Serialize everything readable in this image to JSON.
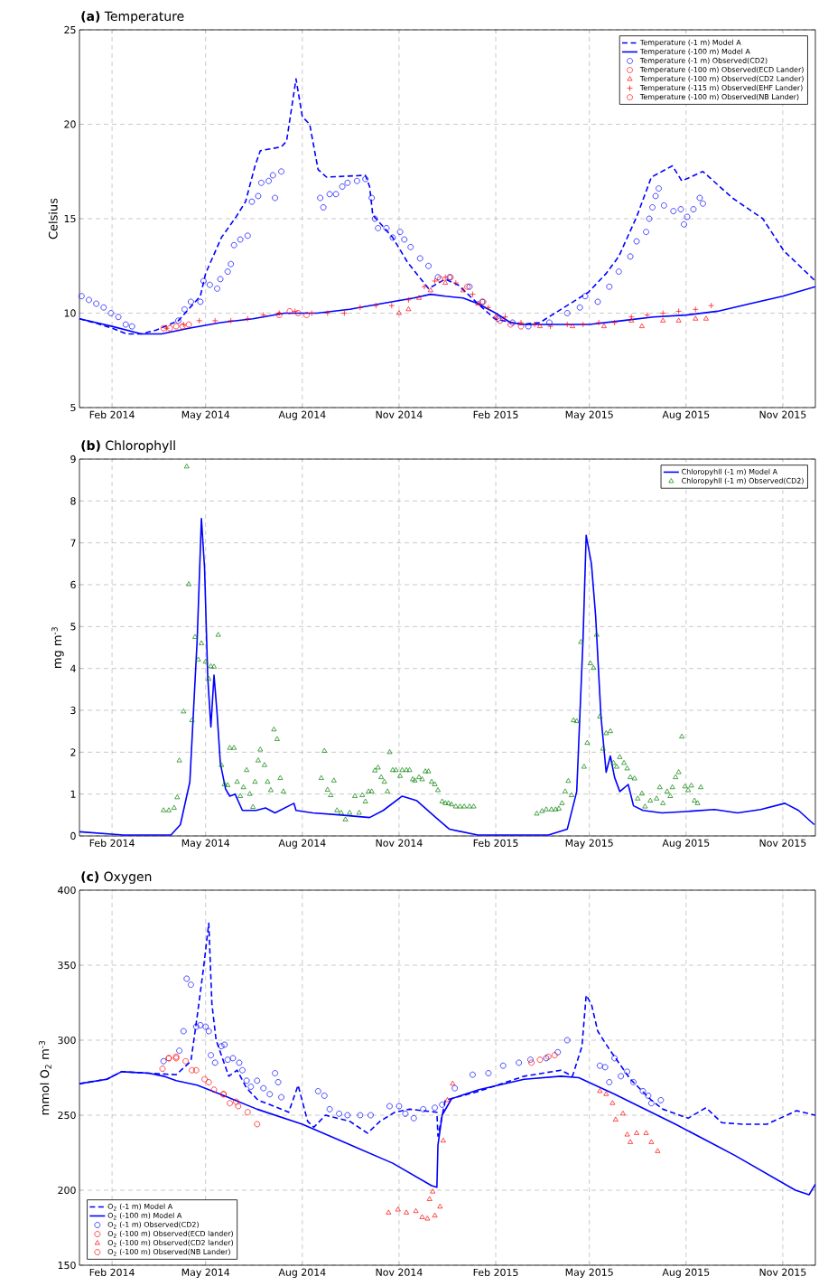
{
  "chart_data": [
    {
      "type": "line",
      "title": "**(a)** Temperature",
      "ylabel": "Celsius",
      "grid": true,
      "legend": "top right",
      "xlim": [
        "2014-01-01",
        "2015-12-02"
      ],
      "ylim": [
        5,
        25
      ],
      "yticks": [
        5,
        10,
        15,
        20,
        25
      ],
      "xticks": [
        {
          "value": "2014-02-01",
          "label": "Feb 2014"
        },
        {
          "value": "2014-05-01",
          "label": "May 2014"
        },
        {
          "value": "2014-08-01",
          "label": "Aug 2014"
        },
        {
          "value": "2014-11-01",
          "label": "Nov 2014"
        },
        {
          "value": "2015-02-01",
          "label": "Feb 2015"
        },
        {
          "value": "2015-05-01",
          "label": "May 2015"
        },
        {
          "value": "2015-08-01",
          "label": "Aug 2015"
        },
        {
          "value": "2015-11-01",
          "label": "Nov 2015"
        }
      ],
      "series": [
        {
          "name": "Temperature (-1 m) Model A",
          "color": "#0000ff",
          "line_style": "dashed",
          "x": [
            "2014-01-01",
            "2014-01-15",
            "2014-02-01",
            "2014-02-15",
            "2014-03-01",
            "2014-03-15",
            "2014-04-05",
            "2014-04-26",
            "2014-05-01",
            "2014-05-16",
            "2014-05-30",
            "2014-06-08",
            "2014-06-17",
            "2014-06-22",
            "2014-07-12",
            "2014-07-17",
            "2014-07-26",
            "2014-08-01",
            "2014-08-08",
            "2014-08-16",
            "2014-08-24",
            "2014-09-30",
            "2014-10-04",
            "2014-10-07",
            "2014-10-26",
            "2014-11-09",
            "2014-11-29",
            "2014-12-15",
            "2014-12-27",
            "2015-01-15",
            "2015-01-31",
            "2015-02-25",
            "2015-03-15",
            "2015-04-04",
            "2015-04-30",
            "2015-05-17",
            "2015-05-29",
            "2015-06-15",
            "2015-06-29",
            "2015-07-19",
            "2015-07-28",
            "2015-08-17",
            "2015-09-14",
            "2015-10-13",
            "2015-11-02",
            "2015-12-02"
          ],
          "values": [
            9.7,
            9.5,
            9.2,
            8.9,
            8.9,
            9.1,
            9.6,
            10.9,
            12.1,
            14.0,
            15.1,
            15.9,
            17.8,
            18.6,
            18.8,
            19.1,
            22.4,
            20.4,
            20.0,
            17.6,
            17.2,
            17.3,
            16.7,
            15.2,
            14.0,
            12.7,
            11.3,
            11.8,
            11.5,
            10.5,
            9.7,
            9.4,
            9.5,
            10.2,
            11.1,
            12.1,
            13.0,
            15.1,
            17.2,
            17.8,
            17.0,
            17.5,
            16.1,
            15.0,
            13.3,
            11.7
          ]
        },
        {
          "name": "Temperature (-100 m) Model A",
          "color": "#0000ff",
          "line_style": "solid",
          "x": [
            "2014-01-01",
            "2014-02-01",
            "2014-03-01",
            "2014-03-20",
            "2014-04-15",
            "2014-05-15",
            "2014-06-15",
            "2014-07-15",
            "2014-08-15",
            "2014-09-15",
            "2014-10-15",
            "2014-11-15",
            "2014-12-01",
            "2014-12-15",
            "2015-01-01",
            "2015-01-15",
            "2015-02-01",
            "2015-02-15",
            "2015-03-01",
            "2015-04-01",
            "2015-05-01",
            "2015-06-01",
            "2015-07-01",
            "2015-08-01",
            "2015-08-31",
            "2015-10-01",
            "2015-11-01",
            "2015-12-02"
          ],
          "values": [
            9.7,
            9.3,
            8.9,
            8.9,
            9.2,
            9.5,
            9.7,
            10.0,
            10.0,
            10.2,
            10.5,
            10.8,
            11.0,
            10.9,
            10.8,
            10.5,
            10.0,
            9.5,
            9.4,
            9.4,
            9.4,
            9.6,
            9.8,
            9.9,
            10.1,
            10.5,
            10.9,
            11.4
          ]
        },
        {
          "name": "Temperature (-1 m) Observed(CD2)",
          "color": "#0000ff",
          "type": "scatter",
          "marker": "circle",
          "x": [
            "2014-01-03",
            "2014-01-10",
            "2014-01-17",
            "2014-01-24",
            "2014-01-31",
            "2014-02-07",
            "2014-02-14",
            "2014-02-20",
            "2014-04-05",
            "2014-04-11",
            "2014-04-17",
            "2014-04-26",
            "2014-04-29",
            "2014-05-05",
            "2014-05-12",
            "2014-05-15",
            "2014-05-22",
            "2014-05-25",
            "2014-05-28",
            "2014-06-03",
            "2014-06-10",
            "2014-06-14",
            "2014-06-20",
            "2014-06-23",
            "2014-06-30",
            "2014-07-04",
            "2014-07-06",
            "2014-07-12",
            "2014-08-18",
            "2014-08-21",
            "2014-08-27",
            "2014-09-02",
            "2014-09-08",
            "2014-09-13",
            "2014-09-22",
            "2014-09-30",
            "2014-10-06",
            "2014-10-09",
            "2014-10-12",
            "2014-10-20",
            "2014-10-26",
            "2014-11-02",
            "2014-11-06",
            "2014-11-12",
            "2014-11-21",
            "2014-11-29",
            "2014-12-08",
            "2014-12-19",
            "2015-01-07",
            "2015-01-19",
            "2015-02-03",
            "2015-02-17",
            "2015-03-04",
            "2015-03-24",
            "2015-04-10",
            "2015-04-22",
            "2015-04-27",
            "2015-05-09",
            "2015-05-20",
            "2015-05-29",
            "2015-06-09",
            "2015-06-15",
            "2015-06-24",
            "2015-06-27",
            "2015-06-30",
            "2015-07-03",
            "2015-07-06",
            "2015-07-11",
            "2015-07-20",
            "2015-07-27",
            "2015-07-30",
            "2015-08-02",
            "2015-08-08",
            "2015-08-14",
            "2015-08-17"
          ],
          "values": [
            10.9,
            10.7,
            10.5,
            10.3,
            10.0,
            9.8,
            9.4,
            9.3,
            9.6,
            10.2,
            10.6,
            10.6,
            11.7,
            11.5,
            11.3,
            11.8,
            12.2,
            12.6,
            13.6,
            13.9,
            14.1,
            15.9,
            16.2,
            16.9,
            17.0,
            17.3,
            16.1,
            17.5,
            16.1,
            15.6,
            16.3,
            16.3,
            16.7,
            16.9,
            17.0,
            17.1,
            16.1,
            15.0,
            14.5,
            14.5,
            14.0,
            14.3,
            13.9,
            13.5,
            12.9,
            12.5,
            11.9,
            11.9,
            11.4,
            10.6,
            9.7,
            9.5,
            9.3,
            9.5,
            10.0,
            10.3,
            10.9,
            10.6,
            11.4,
            12.2,
            13.0,
            13.8,
            14.3,
            15.0,
            15.6,
            16.2,
            16.6,
            15.7,
            15.4,
            15.5,
            14.7,
            15.1,
            15.5,
            16.1,
            15.8
          ]
        },
        {
          "name": "Temperature (-100 m) Observed(ECD Lander)",
          "color": "#ff0000",
          "type": "scatter",
          "marker": "circle",
          "x": [
            "2014-07-10",
            "2014-07-20",
            "2014-07-28",
            "2014-08-05",
            "2014-12-10",
            "2014-12-20",
            "2015-01-05",
            "2015-01-20",
            "2015-02-05",
            "2015-02-15",
            "2015-02-25"
          ],
          "values": [
            9.9,
            10.1,
            10.0,
            9.9,
            11.8,
            11.9,
            11.4,
            10.6,
            9.6,
            9.4,
            9.3
          ]
        },
        {
          "name": "Temperature (-100 m) Observed(CD2 Lander)",
          "color": "#ff0000",
          "type": "scatter",
          "marker": "triangle",
          "x": [
            "2014-11-01",
            "2014-11-10",
            "2014-11-20",
            "2014-12-01",
            "2014-12-15",
            "2015-01-01",
            "2015-01-15",
            "2015-02-01",
            "2015-03-15",
            "2015-04-15",
            "2015-05-15",
            "2015-06-10",
            "2015-06-20",
            "2015-07-10",
            "2015-07-25",
            "2015-08-10",
            "2015-08-20"
          ],
          "values": [
            10.0,
            10.2,
            10.8,
            11.2,
            11.6,
            11.2,
            10.5,
            9.8,
            9.3,
            9.3,
            9.3,
            9.6,
            9.3,
            9.6,
            9.6,
            9.7,
            9.7
          ]
        },
        {
          "name": "Temperature (-115 m) Observed(EHF Lander)",
          "color": "#ff0000",
          "type": "scatter",
          "marker": "cross",
          "x": [
            "2014-03-25",
            "2014-04-10",
            "2014-04-25",
            "2014-05-10",
            "2014-05-25",
            "2014-06-10",
            "2014-06-25",
            "2014-07-10",
            "2014-07-25",
            "2014-08-10",
            "2014-08-25",
            "2014-09-10",
            "2014-09-25",
            "2014-10-10",
            "2014-10-25",
            "2014-11-10",
            "2014-11-25",
            "2014-12-05",
            "2014-12-15",
            "2014-12-25",
            "2015-01-10",
            "2015-01-25",
            "2015-02-10",
            "2015-02-25",
            "2015-03-10",
            "2015-03-25",
            "2015-04-10",
            "2015-04-25",
            "2015-05-10",
            "2015-05-25",
            "2015-06-10",
            "2015-06-25",
            "2015-07-10",
            "2015-07-25",
            "2015-08-10",
            "2015-08-25"
          ],
          "values": [
            9.2,
            9.4,
            9.6,
            9.6,
            9.6,
            9.7,
            9.9,
            10.0,
            10.1,
            10.0,
            10.0,
            10.0,
            10.3,
            10.4,
            10.4,
            10.7,
            11.4,
            11.7,
            11.9,
            11.6,
            11.0,
            10.3,
            9.8,
            9.5,
            9.4,
            9.3,
            9.4,
            9.4,
            9.5,
            9.5,
            9.8,
            9.9,
            10.0,
            10.1,
            10.2,
            10.4
          ]
        },
        {
          "name": "Temperature (-100 m) Observed(NB Lander)",
          "color": "#ff0000",
          "type": "scatter",
          "marker": "circle",
          "x": [
            "2014-03-22",
            "2014-03-28",
            "2014-04-03",
            "2014-04-09",
            "2014-04-15"
          ],
          "values": [
            9.2,
            9.2,
            9.3,
            9.3,
            9.4
          ]
        }
      ]
    },
    {
      "type": "line",
      "title": "**(b)** Chlorophyll",
      "ylabel": "mg m$^{-3}$",
      "grid": true,
      "legend": "top right",
      "xlim": [
        "2014-01-01",
        "2015-12-02"
      ],
      "ylim": [
        0,
        9
      ],
      "yticks": [
        0,
        1,
        2,
        3,
        4,
        5,
        6,
        7,
        8,
        9
      ],
      "xticks": [
        {
          "value": "2014-02-01",
          "label": "Feb 2014"
        },
        {
          "value": "2014-05-01",
          "label": "May 2014"
        },
        {
          "value": "2014-08-01",
          "label": "Aug 2014"
        },
        {
          "value": "2014-11-01",
          "label": "Nov 2014"
        },
        {
          "value": "2015-02-01",
          "label": "Feb 2015"
        },
        {
          "value": "2015-05-01",
          "label": "May 2015"
        },
        {
          "value": "2015-08-01",
          "label": "Aug 2015"
        },
        {
          "value": "2015-11-01",
          "label": "Nov 2015"
        }
      ],
      "series": [
        {
          "name": "Chloropyhll (-1 m) Model A",
          "color": "#0000ff",
          "line_style": "solid",
          "x": [
            "2014-01-01",
            "2014-02-12",
            "2014-03-29",
            "2014-04-07",
            "2014-04-16",
            "2014-04-23",
            "2014-04-27",
            "2014-04-30",
            "2014-05-03",
            "2014-05-06",
            "2014-05-09",
            "2014-05-12",
            "2014-05-15",
            "2014-05-20",
            "2014-05-24",
            "2014-05-29",
            "2014-06-05",
            "2014-06-18",
            "2014-06-27",
            "2014-07-06",
            "2014-07-24",
            "2014-07-26",
            "2014-08-11",
            "2014-09-07",
            "2014-10-04",
            "2014-10-17",
            "2014-11-04",
            "2014-11-18",
            "2014-12-06",
            "2014-12-19",
            "2015-01-15",
            "2015-03-23",
            "2015-04-10",
            "2015-04-19",
            "2015-04-25",
            "2015-04-28",
            "2015-05-03",
            "2015-05-07",
            "2015-05-12",
            "2015-05-17",
            "2015-05-21",
            "2015-05-25",
            "2015-05-30",
            "2015-06-07",
            "2015-06-12",
            "2015-06-21",
            "2015-07-09",
            "2015-08-05",
            "2015-08-28",
            "2015-09-19",
            "2015-10-11",
            "2015-11-03",
            "2015-11-16",
            "2015-12-01"
          ],
          "values": [
            0.1,
            0.02,
            0.02,
            0.27,
            1.29,
            4.7,
            7.58,
            6.4,
            3.8,
            2.6,
            3.84,
            2.9,
            1.74,
            1.12,
            0.95,
            1.0,
            0.61,
            0.61,
            0.67,
            0.55,
            0.78,
            0.61,
            0.55,
            0.5,
            0.44,
            0.61,
            0.95,
            0.84,
            0.44,
            0.16,
            0.02,
            0.02,
            0.16,
            1.06,
            4.69,
            7.18,
            6.5,
            5.25,
            2.88,
            1.52,
            1.91,
            1.4,
            1.06,
            1.23,
            0.72,
            0.61,
            0.55,
            0.59,
            0.63,
            0.55,
            0.63,
            0.78,
            0.61,
            0.27
          ]
        },
        {
          "name": "Chloropyhll (-1 m) Observed(CD2)",
          "color": "#008000",
          "type": "scatter",
          "marker": "triangle",
          "x": [
            "2014-03-22",
            "2014-03-27",
            "2014-04-01",
            "2014-04-04",
            "2014-04-06",
            "2014-04-10",
            "2014-04-13",
            "2014-04-15",
            "2014-04-18",
            "2014-04-21",
            "2014-04-24",
            "2014-04-27",
            "2014-05-01",
            "2014-05-04",
            "2014-05-06",
            "2014-05-09",
            "2014-05-13",
            "2014-05-16",
            "2014-05-19",
            "2014-05-22",
            "2014-05-24",
            "2014-05-28",
            "2014-05-31",
            "2014-06-03",
            "2014-06-06",
            "2014-06-09",
            "2014-06-12",
            "2014-06-15",
            "2014-06-17",
            "2014-06-20",
            "2014-06-22",
            "2014-06-26",
            "2014-06-29",
            "2014-07-02",
            "2014-07-05",
            "2014-07-08",
            "2014-07-11",
            "2014-07-14",
            "2014-08-19",
            "2014-08-22",
            "2014-08-25",
            "2014-08-28",
            "2014-08-31",
            "2014-09-03",
            "2014-09-07",
            "2014-09-11",
            "2014-09-15",
            "2014-09-20",
            "2014-09-24",
            "2014-09-27",
            "2014-09-30",
            "2014-10-03",
            "2014-10-06",
            "2014-10-09",
            "2014-10-12",
            "2014-10-15",
            "2014-10-18",
            "2014-10-21",
            "2014-10-23",
            "2014-10-26",
            "2014-10-29",
            "2014-11-02",
            "2014-11-04",
            "2014-11-08",
            "2014-11-11",
            "2014-11-14",
            "2014-11-16",
            "2014-11-20",
            "2014-11-23",
            "2014-11-26",
            "2014-11-29",
            "2014-12-02",
            "2014-12-05",
            "2014-12-08",
            "2014-12-12",
            "2014-12-15",
            "2014-12-18",
            "2014-12-21",
            "2014-12-25",
            "2014-12-29",
            "2015-01-02",
            "2015-01-07",
            "2015-01-11",
            "2015-03-12",
            "2015-03-17",
            "2015-03-21",
            "2015-03-26",
            "2015-03-30",
            "2015-04-02",
            "2015-04-05",
            "2015-04-08",
            "2015-04-11",
            "2015-04-14",
            "2015-04-16",
            "2015-04-19",
            "2015-04-23",
            "2015-04-26",
            "2015-04-29",
            "2015-05-02",
            "2015-05-05",
            "2015-05-08",
            "2015-05-11",
            "2015-05-14",
            "2015-05-17",
            "2015-05-21",
            "2015-05-24",
            "2015-05-27",
            "2015-05-30",
            "2015-06-03",
            "2015-06-06",
            "2015-06-09",
            "2015-06-13",
            "2015-06-16",
            "2015-06-20",
            "2015-06-23",
            "2015-06-28",
            "2015-07-04",
            "2015-07-07",
            "2015-07-10",
            "2015-07-14",
            "2015-07-17",
            "2015-07-19",
            "2015-07-22",
            "2015-07-25",
            "2015-07-28",
            "2015-07-31",
            "2015-08-03",
            "2015-08-06",
            "2015-08-09",
            "2015-08-12",
            "2015-08-15"
          ],
          "values": [
            0.61,
            0.61,
            0.67,
            0.92,
            1.8,
            2.97,
            8.82,
            6.01,
            2.76,
            4.75,
            4.21,
            4.6,
            4.16,
            3.75,
            4.05,
            4.04,
            4.8,
            1.69,
            1.23,
            1.21,
            2.1,
            2.1,
            1.29,
            0.95,
            1.16,
            1.57,
            1.0,
            0.69,
            1.29,
            1.8,
            2.06,
            1.69,
            1.29,
            1.09,
            2.54,
            2.31,
            1.38,
            1.06,
            1.38,
            2.03,
            1.1,
            0.97,
            1.32,
            0.61,
            0.55,
            0.39,
            0.55,
            0.95,
            0.55,
            0.97,
            0.82,
            1.06,
            1.06,
            1.56,
            1.63,
            1.4,
            1.29,
            1.06,
            2.0,
            1.57,
            1.57,
            1.43,
            1.57,
            1.57,
            1.57,
            1.35,
            1.32,
            1.4,
            1.35,
            1.54,
            1.54,
            1.29,
            1.23,
            1.09,
            0.82,
            0.78,
            0.78,
            0.75,
            0.7,
            0.7,
            0.7,
            0.7,
            0.7,
            0.53,
            0.59,
            0.63,
            0.63,
            0.63,
            0.65,
            0.78,
            1.06,
            1.31,
            0.97,
            2.76,
            2.74,
            4.63,
            1.65,
            2.22,
            4.12,
            4.01,
            4.8,
            2.85,
            2.08,
            2.45,
            2.5,
            1.74,
            1.65,
            1.88,
            1.74,
            1.61,
            1.4,
            1.37,
            0.89,
            1.01,
            0.7,
            0.84,
            0.89,
            1.16,
            0.78,
            1.06,
            0.95,
            1.16,
            1.4,
            1.52,
            2.37,
            1.18,
            1.09,
            1.2,
            0.84,
            0.78,
            1.16
          ]
        }
      ]
    },
    {
      "type": "line",
      "title": "**(c)** Oxygen",
      "ylabel": "mmol O$_{2}$ m$^{-3}$",
      "grid": true,
      "legend": "bottom left",
      "xlim": [
        "2014-01-01",
        "2015-12-02"
      ],
      "ylim": [
        150,
        400
      ],
      "yticks": [
        150,
        200,
        250,
        300,
        350,
        400
      ],
      "xticks": [
        {
          "value": "2014-02-01",
          "label": "Feb 2014"
        },
        {
          "value": "2014-05-01",
          "label": "May 2014"
        },
        {
          "value": "2014-08-01",
          "label": "Aug 2014"
        },
        {
          "value": "2014-11-01",
          "label": "Nov 2014"
        },
        {
          "value": "2015-02-01",
          "label": "Feb 2015"
        },
        {
          "value": "2015-05-01",
          "label": "May 2015"
        },
        {
          "value": "2015-08-01",
          "label": "Aug 2015"
        },
        {
          "value": "2015-11-01",
          "label": "Nov 2015"
        }
      ],
      "series": [
        {
          "name": "O$_{2}$ (-1 m) Model A",
          "color": "#0000ff",
          "line_style": "dashed",
          "x": [
            "2014-01-01",
            "2014-01-27",
            "2014-02-10",
            "2014-03-08",
            "2014-04-03",
            "2014-04-17",
            "2014-04-23",
            "2014-04-29",
            "2014-05-04",
            "2014-05-07",
            "2014-05-11",
            "2014-05-23",
            "2014-05-31",
            "2014-06-09",
            "2014-06-20",
            "2014-07-05",
            "2014-07-19",
            "2014-07-28",
            "2014-08-06",
            "2014-08-12",
            "2014-08-23",
            "2014-09-15",
            "2014-10-02",
            "2014-10-14",
            "2014-10-28",
            "2014-11-11",
            "2014-12-07",
            "2014-12-08",
            "2014-12-15",
            "2015-01-16",
            "2015-02-28",
            "2015-04-04",
            "2015-04-15",
            "2015-04-24",
            "2015-04-28",
            "2015-05-03",
            "2015-05-09",
            "2015-05-20",
            "2015-06-09",
            "2015-06-29",
            "2015-07-10",
            "2015-08-03",
            "2015-08-20",
            "2015-09-04",
            "2015-09-24",
            "2015-10-17",
            "2015-11-14",
            "2015-12-02"
          ],
          "values": [
            271,
            274,
            279,
            278,
            277,
            286,
            316,
            348,
            378,
            324,
            300,
            276,
            280,
            268,
            260,
            256,
            252,
            270,
            246,
            242,
            250,
            246,
            238,
            246,
            252,
            254,
            252,
            236,
            260,
            266,
            276,
            280,
            276,
            296,
            330,
            324,
            306,
            294,
            274,
            260,
            254,
            248,
            255,
            245,
            244,
            244,
            253,
            250
          ]
        },
        {
          "name": "O$_{2}$ (-100 m) Model A",
          "color": "#0000ff",
          "line_style": "solid",
          "x": [
            "2014-01-01",
            "2014-01-27",
            "2014-02-10",
            "2014-03-08",
            "2014-03-22",
            "2014-04-03",
            "2014-04-23",
            "2014-05-22",
            "2014-06-19",
            "2014-08-01",
            "2014-09-13",
            "2014-10-26",
            "2014-12-02",
            "2014-12-07",
            "2014-12-08",
            "2014-12-12",
            "2014-12-21",
            "2015-01-16",
            "2015-02-28",
            "2015-04-04",
            "2015-04-21",
            "2015-05-25",
            "2015-07-22",
            "2015-09-17",
            "2015-11-13",
            "2015-11-26",
            "2015-12-02"
          ],
          "values": [
            271,
            274,
            279,
            278,
            276,
            273,
            270,
            262,
            254,
            244,
            231,
            218,
            203,
            202,
            230,
            250,
            261,
            267,
            274,
            276,
            275,
            264,
            244,
            223,
            200,
            197,
            204
          ]
        },
        {
          "name": "O$_{2}$ (-1 m) Observed(CD2)",
          "color": "#0000ff",
          "type": "scatter",
          "marker": "circle",
          "x": [
            "2014-03-22",
            "2014-04-06",
            "2014-04-10",
            "2014-04-13",
            "2014-04-17",
            "2014-04-22",
            "2014-04-26",
            "2014-05-01",
            "2014-05-04",
            "2014-05-06",
            "2014-05-10",
            "2014-05-16",
            "2014-05-19",
            "2014-05-22",
            "2014-05-27",
            "2014-06-02",
            "2014-06-05",
            "2014-06-09",
            "2014-06-13",
            "2014-06-19",
            "2014-06-25",
            "2014-07-01",
            "2014-07-06",
            "2014-07-09",
            "2014-07-12",
            "2014-08-16",
            "2014-08-22",
            "2014-08-27",
            "2014-09-05",
            "2014-09-13",
            "2014-09-25",
            "2014-10-05",
            "2014-10-23",
            "2014-11-01",
            "2014-11-07",
            "2014-11-15",
            "2014-11-24",
            "2014-12-05",
            "2014-12-12",
            "2014-12-24",
            "2015-01-10",
            "2015-01-25",
            "2015-02-08",
            "2015-02-23",
            "2015-03-06",
            "2015-03-21",
            "2015-04-01",
            "2015-04-10",
            "2015-05-11",
            "2015-05-16",
            "2015-05-20",
            "2015-05-25",
            "2015-05-31",
            "2015-06-06",
            "2015-06-12",
            "2015-06-21",
            "2015-06-26",
            "2015-06-29",
            "2015-07-08"
          ],
          "values": [
            286,
            293,
            306,
            341,
            337,
            309,
            310,
            309,
            306,
            290,
            285,
            296,
            297,
            287,
            288,
            285,
            280,
            273,
            269,
            273,
            268,
            264,
            278,
            272,
            262,
            266,
            263,
            254,
            251,
            250,
            250,
            250,
            256,
            256,
            251,
            248,
            254,
            255,
            257,
            268,
            277,
            278,
            283,
            285,
            287,
            288,
            292,
            300,
            283,
            282,
            272,
            288,
            276,
            279,
            272,
            266,
            263,
            258,
            260
          ]
        },
        {
          "name": "O$_{2}$ (-100 m) Observed(ECD lander)",
          "color": "#ff0000",
          "type": "scatter",
          "marker": "circle",
          "x": [
            "2014-03-21",
            "2014-03-27",
            "2014-04-03",
            "2014-04-12",
            "2014-04-22",
            "2014-04-30",
            "2014-05-09",
            "2014-05-18",
            "2014-05-24",
            "2014-05-30"
          ],
          "values": [
            281,
            288,
            289,
            286,
            280,
            274,
            267,
            264,
            258,
            259
          ]
        },
        {
          "name": "O$_{2}$ (-100 m) Observed(CD2 lander)",
          "color": "#ff0000",
          "type": "scatter",
          "marker": "triangle",
          "x": [
            "2014-10-22",
            "2014-10-31",
            "2014-11-08",
            "2014-11-17",
            "2014-11-23",
            "2014-11-28",
            "2014-11-30",
            "2014-12-03",
            "2014-12-05",
            "2014-12-10",
            "2014-12-13",
            "2014-12-17",
            "2014-12-22",
            "2015-05-11",
            "2015-05-17",
            "2015-05-23",
            "2015-05-26",
            "2015-06-02",
            "2015-06-06",
            "2015-06-09",
            "2015-06-15",
            "2015-06-24",
            "2015-06-29",
            "2015-07-05"
          ],
          "values": [
            185,
            187,
            185,
            186,
            182,
            181,
            194,
            199,
            183,
            189,
            233,
            260,
            271,
            266,
            264,
            258,
            247,
            251,
            237,
            232,
            238,
            238,
            232,
            226
          ]
        },
        {
          "name": "O$_{2}$ (-100 m) Observed(NB Lander)",
          "color": "#ff0000",
          "type": "scatter",
          "marker": "circle",
          "x": [
            "2014-03-27",
            "2014-04-03",
            "2014-04-18",
            "2014-05-04",
            "2014-05-18",
            "2014-06-01",
            "2014-06-10",
            "2014-06-19",
            "2015-03-07",
            "2015-03-15",
            "2015-03-23",
            "2015-03-29"
          ],
          "values": [
            288,
            288,
            280,
            272,
            264,
            256,
            252,
            244,
            285,
            287,
            289,
            290
          ]
        }
      ]
    }
  ]
}
